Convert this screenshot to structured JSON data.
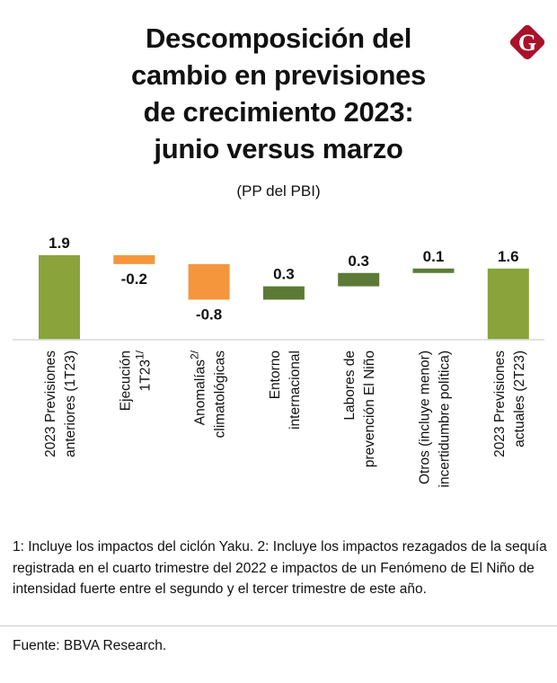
{
  "title_lines": [
    "Descomposición del",
    "cambio en previsiones",
    "de crecimiento 2023:",
    "junio versus marzo"
  ],
  "subtitle": "(PP del PBI)",
  "logo_letter": "G",
  "colors": {
    "total": "#8aa33a",
    "negative": "#f5963c",
    "positive": "#5c7a35",
    "logo": "#a8122a"
  },
  "chart_data": {
    "type": "waterfall",
    "categories": [
      {
        "lines": [
          "2023 Previsiones",
          "anteriores (1T23)"
        ],
        "sup": ""
      },
      {
        "lines": [
          "Ejecución",
          "1T23"
        ],
        "sup": "1/"
      },
      {
        "lines": [
          "Anomalías",
          "climatológicas"
        ],
        "sup": "2/"
      },
      {
        "lines": [
          "Entorno",
          "internacional"
        ],
        "sup": ""
      },
      {
        "lines": [
          "Labores de",
          "prevención El Niño"
        ],
        "sup": ""
      },
      {
        "lines": [
          "Otros (incluye menor)",
          "incertidumbre política)"
        ],
        "sup": ""
      },
      {
        "lines": [
          "2023 Previsiones",
          "actuales (2T23)"
        ],
        "sup": ""
      }
    ],
    "values": [
      1.9,
      -0.2,
      -0.8,
      0.3,
      0.3,
      0.1,
      1.6
    ],
    "value_labels": [
      "1.9",
      "-0.2",
      "-0.8",
      "0.3",
      "0.3",
      "0.1",
      "1.6"
    ],
    "kinds": [
      "total",
      "change",
      "change",
      "change",
      "change",
      "change",
      "total"
    ],
    "ylim": [
      0,
      1.9
    ]
  },
  "notes": "1: Incluye los impactos del ciclón Yaku.   2: Incluye los impactos rezagados de la sequía registrada en el cuarto trimestre del 2022 e impactos de un Fenómeno de El Niño de intensidad fuerte entre el segundo y el tercer trimestre de este año.",
  "source": "Fuente: BBVA Research."
}
